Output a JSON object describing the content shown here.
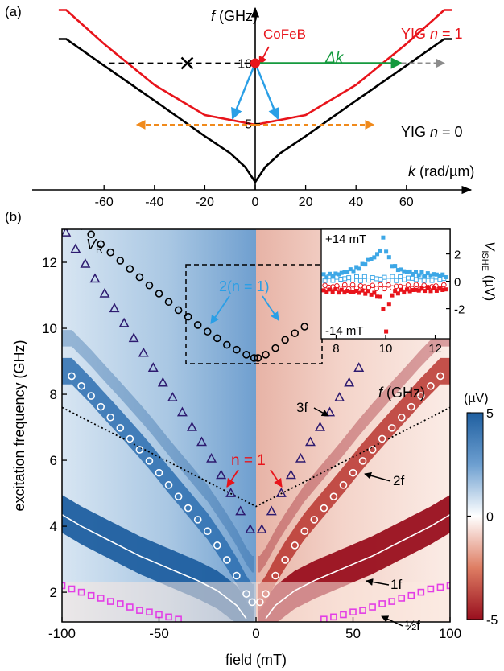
{
  "panel_a": {
    "label": "(a)",
    "chart_data": {
      "type": "line",
      "xlabel_var": "k",
      "xlabel_unit": " (rad/µm)",
      "ylabel_var": "f",
      "ylabel_unit": " (GHz)",
      "xlim": [
        -78,
        78
      ],
      "ylim": [
        -0.5,
        13.5
      ],
      "x_ticks": [
        -60,
        -40,
        -20,
        0,
        20,
        40,
        60
      ],
      "y_ticks": [
        5,
        10
      ],
      "series": [
        {
          "name": "YIG n = 1",
          "color": "#e8141b",
          "x": [
            -75,
            -60,
            -40,
            -20,
            0,
            20,
            40,
            60,
            75
          ],
          "y": [
            14.4,
            11.6,
            8.2,
            5.7,
            4.9,
            5.7,
            8.2,
            11.6,
            14.4
          ]
        },
        {
          "name": "YIG n = 0",
          "color": "#000000",
          "x": [
            -75,
            -60,
            -40,
            -20,
            -10,
            -4,
            0,
            4,
            10,
            20,
            40,
            60,
            75
          ],
          "y": [
            12.0,
            9.8,
            6.9,
            3.95,
            2.55,
            1.4,
            0.15,
            1.4,
            2.55,
            3.95,
            6.9,
            9.8,
            12.0
          ]
        }
      ],
      "annotations": {
        "cofeb_label": "CoFeB",
        "delta_k_label": "Δk",
        "yig_n1_prefix": "YIG ",
        "yig_n1_var": "n",
        "yig_n1_suffix": " = 1",
        "yig_n0_prefix": "YIG ",
        "yig_n0_var": "n",
        "yig_n0_suffix": " = 0",
        "cofeb_point": {
          "k": 0,
          "f": 10
        },
        "cross_point": {
          "k": -27,
          "f": 10
        },
        "orange_arrow": {
          "from_k": -47,
          "to_k": 47,
          "f": 4.9
        },
        "green_arrow": {
          "from_k": 0,
          "to_k": 58,
          "f": 10
        },
        "grey_arrow": {
          "from_k": 58,
          "to_k": 75,
          "f": 10
        }
      }
    }
  },
  "panel_b": {
    "label": "(b)",
    "chart_data": {
      "type": "heatmap",
      "xlabel": "field (mT)",
      "ylabel": "excitation frequency (GHz)",
      "xlim": [
        -100,
        100
      ],
      "ylim": [
        1.1,
        13
      ],
      "x_ticks": [
        -100,
        -50,
        0,
        50,
        100
      ],
      "y_ticks": [
        2,
        4,
        6,
        8,
        10,
        12
      ],
      "colorbar": {
        "unit": "(µV)",
        "ticks": [
          5,
          0,
          -5
        ],
        "min": -5,
        "max": 5,
        "colors": [
          "#1f5fa0",
          "#ffffff",
          "#990f1e"
        ]
      },
      "annotations": {
        "vr_main": "V",
        "vr_sub": "R",
        "label_2n1": "2(n = 1)",
        "label_n1": "n = 1",
        "label_3f": "3f",
        "label_2f": "2f",
        "label_1f": "1f",
        "label_half_f": "½f"
      },
      "series": [
        {
          "name": "n = 1",
          "marker": "circle",
          "color": "#ffffff",
          "x": [
            -95,
            -90,
            -85,
            -80,
            -75,
            -70,
            -65,
            -60,
            -55,
            -50,
            -45,
            -40,
            -35,
            -30,
            -25,
            -20,
            -15,
            -10,
            -5,
            -2,
            2,
            5,
            10,
            15,
            20,
            25,
            30,
            35,
            40,
            45,
            50,
            55,
            60,
            65,
            70,
            75,
            80,
            85,
            90,
            95
          ],
          "y": [
            8.55,
            8.25,
            7.95,
            7.62,
            7.3,
            6.98,
            6.65,
            6.32,
            5.98,
            5.62,
            5.25,
            4.9,
            4.55,
            4.2,
            3.85,
            3.42,
            2.98,
            2.5,
            1.95,
            1.7,
            1.7,
            1.95,
            2.5,
            2.98,
            3.42,
            3.85,
            4.2,
            4.55,
            4.9,
            5.25,
            5.62,
            5.98,
            6.32,
            6.65,
            6.98,
            7.3,
            7.62,
            7.95,
            8.25,
            8.55
          ]
        },
        {
          "name": "2(n = 1)",
          "marker": "circle",
          "color": "#000000",
          "x": [
            -90,
            -85,
            -80,
            -75,
            -70,
            -65,
            -60,
            -55,
            -50,
            -45,
            -40,
            -35,
            -30,
            -25,
            -20,
            -15,
            -10,
            -5,
            -1,
            1,
            5,
            10,
            15,
            20,
            25
          ],
          "y": [
            13.1,
            12.85,
            12.55,
            12.3,
            12.05,
            11.8,
            11.55,
            11.3,
            11.05,
            10.8,
            10.55,
            10.35,
            10.1,
            9.9,
            9.7,
            9.5,
            9.35,
            9.2,
            9.1,
            9.1,
            9.2,
            9.4,
            9.65,
            9.85,
            10.05
          ]
        },
        {
          "name": "3f",
          "marker": "triangle",
          "color": "#2d1a6f",
          "x": [
            -98,
            -93,
            -88,
            -83,
            -78,
            -73,
            -68,
            -63,
            -58,
            -53,
            -48,
            -43,
            -38,
            -33,
            -28,
            -23,
            -18,
            -13,
            -8,
            -3,
            3,
            8,
            13,
            18,
            23,
            28,
            33,
            38,
            43,
            48,
            53
          ],
          "y": [
            12.9,
            12.4,
            11.95,
            11.5,
            11.05,
            10.6,
            10.15,
            9.7,
            9.25,
            8.8,
            8.35,
            7.9,
            7.45,
            7.0,
            6.55,
            6.05,
            5.55,
            5.0,
            4.45,
            3.9,
            3.9,
            4.45,
            5.0,
            5.55,
            6.05,
            6.55,
            7.0,
            7.45,
            7.9,
            8.35,
            8.8
          ]
        },
        {
          "name": "½f",
          "marker": "square",
          "color": "#e33ee6",
          "x": [
            -100,
            -95,
            -90,
            -85,
            -80,
            -75,
            -70,
            -65,
            -60,
            -55,
            -50,
            -45,
            -40,
            35,
            40,
            45,
            50,
            55,
            60,
            65,
            70,
            75,
            80,
            85,
            90,
            95,
            100
          ],
          "y": [
            2.2,
            2.1,
            2.0,
            1.9,
            1.82,
            1.72,
            1.65,
            1.55,
            1.45,
            1.4,
            1.32,
            1.25,
            1.18,
            1.18,
            1.25,
            1.32,
            1.4,
            1.45,
            1.55,
            1.65,
            1.72,
            1.82,
            1.9,
            2.0,
            2.1,
            2.15,
            2.2
          ]
        }
      ],
      "lines": [
        {
          "name": "dotted",
          "style": "dotted",
          "color": "#000000",
          "x": [
            -100,
            0,
            100
          ],
          "y": [
            7.6,
            4.6,
            7.6
          ]
        },
        {
          "name": "white solid",
          "style": "solid",
          "color": "#ffffff",
          "x": [
            -100,
            -90,
            -80,
            -70,
            -60,
            -50,
            -40,
            -30,
            -20,
            -10,
            -5,
            5,
            10,
            20,
            30,
            40,
            50,
            60,
            70,
            80,
            90,
            100
          ],
          "y": [
            4.35,
            4.0,
            3.7,
            3.4,
            3.1,
            2.85,
            2.6,
            2.35,
            2.05,
            1.6,
            1.2,
            1.2,
            1.6,
            2.05,
            2.35,
            2.6,
            2.85,
            3.1,
            3.4,
            3.7,
            4.0,
            4.35
          ]
        }
      ]
    }
  },
  "inset": {
    "chart_data": {
      "type": "scatter",
      "xlabel_var": "f",
      "xlabel_unit": " (GHz)",
      "ylabel_var": "V",
      "ylabel_sub": "ISHE",
      "ylabel_unit": " (µV)",
      "xlim": [
        7.4,
        12.6
      ],
      "ylim": [
        -4.2,
        3.8
      ],
      "x_ticks": [
        8,
        10,
        12
      ],
      "y_ticks": [
        2,
        0,
        -2
      ],
      "series": [
        {
          "name": "+14 mT",
          "color": "#3da7e6",
          "x": [
            7.6,
            8,
            8.4,
            8.8,
            9.1,
            9.3,
            9.5,
            9.7,
            9.8,
            9.9,
            10,
            10.1,
            10.2,
            10.3,
            10.5,
            10.8,
            11.2,
            11.6,
            12,
            12.4
          ],
          "y": [
            0.4,
            0.5,
            0.7,
            0.9,
            1.2,
            1.5,
            1.7,
            2.0,
            2.4,
            3.1,
            2.4,
            1.8,
            1.4,
            1.1,
            0.9,
            0.7,
            0.6,
            0.5,
            0.5,
            0.4
          ]
        },
        {
          "name": "-14 mT",
          "color": "#e8141b",
          "x": [
            7.6,
            8,
            8.4,
            8.8,
            9.2,
            9.5,
            9.8,
            9.9,
            10,
            10.05,
            10.1,
            10.15,
            10.2,
            10.4,
            10.8,
            11.2,
            11.6,
            12,
            12.4
          ],
          "y": [
            -0.7,
            -0.7,
            -0.75,
            -0.75,
            -0.8,
            -0.9,
            -1.2,
            -2.0,
            -3.6,
            -3.7,
            -2.6,
            -1.5,
            -1.0,
            -0.8,
            -0.7,
            -0.65,
            -0.6,
            -0.6,
            -0.6
          ]
        }
      ],
      "labels": {
        "plus": "+14 mT",
        "minus": "-14 mT"
      }
    }
  }
}
